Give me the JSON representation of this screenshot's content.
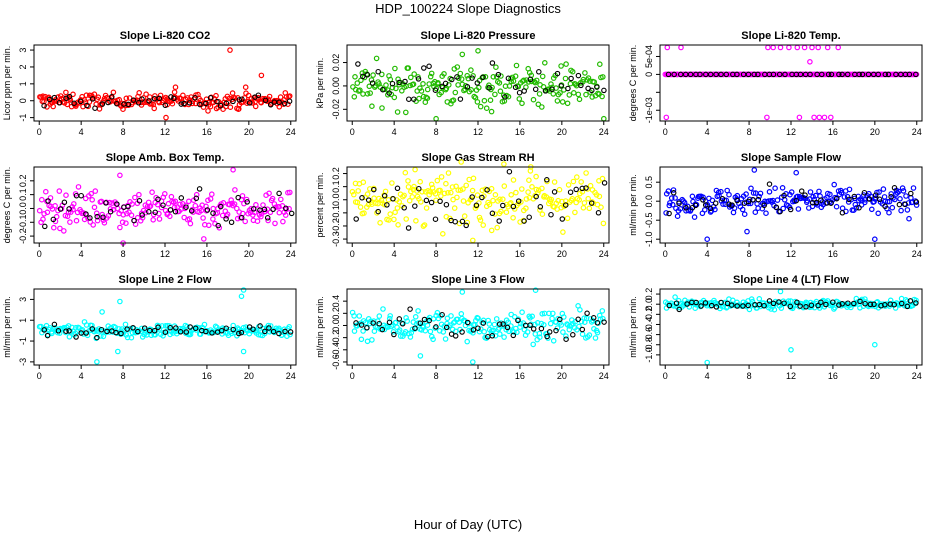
{
  "page": {
    "title": "HDP_100224  Slope Diagnostics",
    "xlabel": "Hour of Day (UTC)"
  },
  "colors": {
    "red": "#ff0000",
    "green": "#22bb00",
    "magenta": "#ff00ff",
    "yellow": "#ffff00",
    "blue": "#0000ff",
    "cyan": "#00ffff",
    "black": "#000000"
  },
  "chart_data": [
    {
      "type": "scatter",
      "title": "Slope Li-820 CO2",
      "ylabel": "Licor ppm per min.",
      "color": "red",
      "xlim": [
        -0.5,
        24.5
      ],
      "ylim": [
        -1.2,
        3.3
      ],
      "yticks": [
        -1,
        0,
        1,
        2,
        3
      ],
      "yticklabels": [
        "-1",
        "0",
        "1",
        "2",
        "3"
      ],
      "spread": 0.22,
      "outliers": [
        [
          18.2,
          3.0
        ],
        [
          19.7,
          0.8
        ],
        [
          21.2,
          1.5
        ],
        [
          12.1,
          -1.0
        ],
        [
          16.1,
          -0.6
        ],
        [
          13.0,
          0.8
        ],
        [
          19.0,
          -0.5
        ]
      ],
      "xticks": [
        0,
        4,
        8,
        12,
        16,
        20,
        24
      ]
    },
    {
      "type": "scatter",
      "title": "Slope Li-820 Pressure",
      "ylabel": "kPa per min.",
      "color": "green",
      "xlim": [
        -0.5,
        24.5
      ],
      "ylim": [
        -0.03,
        0.035
      ],
      "yticks": [
        -0.02,
        0.0,
        0.02
      ],
      "yticklabels": [
        "-0.02",
        "0.00",
        "0.02"
      ],
      "spread": 0.009,
      "outliers": [
        [
          12.0,
          0.03
        ],
        [
          10.5,
          0.027
        ],
        [
          8.0,
          -0.028
        ],
        [
          24.0,
          -0.028
        ],
        [
          13.3,
          -0.022
        ]
      ],
      "xticks": [
        0,
        4,
        8,
        12,
        16,
        20,
        24
      ]
    },
    {
      "type": "scatter",
      "title": "Slope Li-820 Temp.",
      "ylabel": "degrees C per min.",
      "color": "magenta",
      "xlim": [
        -0.5,
        24.5
      ],
      "ylim": [
        -0.0013,
        0.00082
      ],
      "yticks": [
        -0.001,
        -0.0005,
        0,
        0.0005
      ],
      "yticklabels": [
        "-1e-03",
        "",
        "0",
        "5e-04"
      ],
      "spread": 0.0,
      "outliers": [
        [
          0.2,
          0.00075
        ],
        [
          1.5,
          0.00075
        ],
        [
          9.8,
          0.00075
        ],
        [
          10.3,
          0.00075
        ],
        [
          11.0,
          0.00075
        ],
        [
          11.8,
          0.00075
        ],
        [
          12.6,
          0.00075
        ],
        [
          13.3,
          0.00075
        ],
        [
          14.0,
          0.00075
        ],
        [
          14.6,
          0.00075
        ],
        [
          15.5,
          0.00075
        ],
        [
          16.5,
          0.00075
        ],
        [
          13.8,
          0.00035
        ],
        [
          0.1,
          -0.0012
        ],
        [
          9.7,
          -0.0012
        ],
        [
          12.8,
          -0.0012
        ],
        [
          14.7,
          -0.0012
        ],
        [
          15.2,
          -0.0012
        ],
        [
          15.8,
          -0.0012
        ],
        [
          14.2,
          -0.0012
        ]
      ],
      "xticks": [
        0,
        4,
        8,
        12,
        16,
        20,
        24
      ]
    },
    {
      "type": "scatter",
      "title": "Slope Amb. Box Temp.",
      "ylabel": "degrees C per min.",
      "color": "magenta",
      "xlim": [
        -0.5,
        24.5
      ],
      "ylim": [
        -0.25,
        0.3
      ],
      "yticks": [
        -0.2,
        -0.1,
        0.0,
        0.1,
        0.2
      ],
      "yticklabels": [
        "-0.2",
        "-0.1",
        "0.0",
        "0.1",
        "0.2"
      ],
      "spread": 0.07,
      "outliers": [
        [
          18.5,
          0.28
        ],
        [
          8.0,
          -0.25
        ],
        [
          15.7,
          -0.22
        ],
        [
          7.7,
          0.24
        ]
      ],
      "xticks": [
        0,
        4,
        8,
        12,
        16,
        20,
        24
      ]
    },
    {
      "type": "scatter",
      "title": "Slope Gas Stream RH",
      "ylabel": "percent per min.",
      "color": "yellow",
      "xlim": [
        -0.5,
        24.5
      ],
      "ylim": [
        -0.33,
        0.25
      ],
      "yticks": [
        -0.3,
        -0.2,
        -0.1,
        0.0,
        0.1,
        0.2
      ],
      "yticklabels": [
        "-0.3",
        "-0.2",
        "-0.1",
        "0.0",
        "0.1",
        "0.2"
      ],
      "spread": 0.1,
      "outliers": [
        [
          11.5,
          -0.31
        ],
        [
          6.0,
          0.23
        ],
        [
          17.0,
          0.22
        ]
      ],
      "xticks": [
        0,
        4,
        8,
        12,
        16,
        20,
        24
      ]
    },
    {
      "type": "scatter",
      "title": "Slope Sample Flow",
      "ylabel": "ml/min per min.",
      "color": "blue",
      "xlim": [
        -0.5,
        24.5
      ],
      "ylim": [
        -1.1,
        0.9
      ],
      "yticks": [
        -1.0,
        -0.5,
        0.0,
        0.5
      ],
      "yticklabels": [
        "-1.0",
        "-0.5",
        "0.0",
        "0.5"
      ],
      "spread": 0.18,
      "outliers": [
        [
          4.0,
          -1.0
        ],
        [
          20.0,
          -1.0
        ],
        [
          8.5,
          0.82
        ],
        [
          12.5,
          0.75
        ],
        [
          7.8,
          -0.8
        ]
      ],
      "xticks": [
        0,
        4,
        8,
        12,
        16,
        20,
        24
      ]
    },
    {
      "type": "scatter",
      "title": "Slope Line 2 Flow",
      "ylabel": "ml/min per min.",
      "color": "cyan",
      "xlim": [
        -0.5,
        24.5
      ],
      "ylim": [
        -3.3,
        4.0
      ],
      "yticks": [
        -3,
        -1,
        1,
        3
      ],
      "yticklabels": [
        "-3",
        "-1",
        "1",
        "3"
      ],
      "spread": 0.3,
      "outliers": [
        [
          19.5,
          3.9
        ],
        [
          19.3,
          3.3
        ],
        [
          7.7,
          2.8
        ],
        [
          5.5,
          -3.0
        ],
        [
          7.5,
          -2.0
        ],
        [
          19.5,
          -2.0
        ],
        [
          6.0,
          1.8
        ]
      ],
      "xticks": [
        0,
        4,
        8,
        12,
        16,
        20,
        24
      ]
    },
    {
      "type": "scatter",
      "title": "Slope Line 3 Flow",
      "ylabel": "ml/min per min.",
      "color": "cyan",
      "xlim": [
        -0.5,
        24.5
      ],
      "ylim": [
        -0.65,
        0.6
      ],
      "yticks": [
        -0.6,
        -0.4,
        -0.2,
        0.0,
        0.2,
        0.4
      ],
      "yticklabels": [
        "-0.6",
        "-0.4",
        "-0.2",
        "0.0",
        "0.2",
        "0.4"
      ],
      "spread": 0.12,
      "outliers": [
        [
          10.5,
          0.55
        ],
        [
          17.5,
          0.58
        ],
        [
          11.5,
          -0.6
        ],
        [
          6.5,
          -0.5
        ]
      ],
      "xticks": [
        0,
        4,
        8,
        12,
        16,
        20,
        24
      ]
    },
    {
      "type": "scatter",
      "title": "Slope Line 4 (LT) Flow",
      "ylabel": "ml/min per min.",
      "color": "cyan",
      "xlim": [
        -0.5,
        24.5
      ],
      "ylim": [
        -1.2,
        0.3
      ],
      "yticks": [
        -1.0,
        -0.8,
        -0.6,
        -0.4,
        -0.2,
        0.0,
        0.2
      ],
      "yticklabels": [
        "-1.0",
        "-0.8",
        "-0.6",
        "-0.4",
        "-0.2",
        "0.0",
        "0.2"
      ],
      "spread": 0.05,
      "outliers": [
        [
          4.0,
          -1.15
        ],
        [
          12.0,
          -0.9
        ],
        [
          20.0,
          -0.8
        ],
        [
          11.0,
          0.25
        ]
      ],
      "xticks": [
        0,
        4,
        8,
        12,
        16,
        20,
        24
      ]
    }
  ]
}
